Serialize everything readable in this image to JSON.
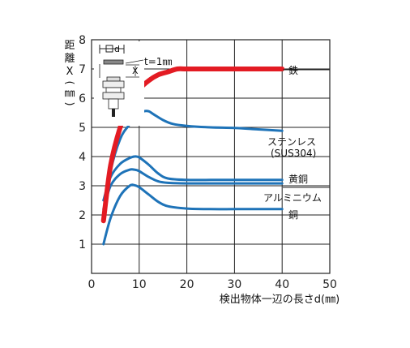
{
  "chart_data": {
    "type": "line",
    "title": "",
    "xlabel": "検出物体一辺の長さd(㎜)",
    "ylabel_chars": [
      "距",
      "離",
      "X",
      "(",
      "㎜",
      ")"
    ],
    "xlim": [
      0,
      50
    ],
    "ylim": [
      0,
      8
    ],
    "xticks": [
      0,
      10,
      20,
      30,
      40,
      50
    ],
    "yticks": [
      1,
      2,
      3,
      4,
      5,
      6,
      7,
      8
    ],
    "grid": true,
    "inset": {
      "t_label": "t=1㎜",
      "d_label": "d",
      "x_label": "X"
    },
    "series": [
      {
        "name": "鉄",
        "color": "#e31b23",
        "x": [
          2.5,
          4,
          6,
          8,
          10,
          12,
          14,
          16,
          18,
          20,
          25,
          30,
          35,
          40
        ],
        "y": [
          1.8,
          3.7,
          5.0,
          5.8,
          6.3,
          6.6,
          6.8,
          6.9,
          7.0,
          7.0,
          7.0,
          7.0,
          7.0,
          7.0
        ]
      },
      {
        "name": "ステンレス",
        "name2": "(SUS304)",
        "color": "#1e73b8",
        "x": [
          2.5,
          4,
          6,
          8,
          10,
          11,
          12,
          13,
          15,
          17,
          20,
          25,
          30,
          35,
          40
        ],
        "y": [
          1.9,
          3.5,
          4.6,
          5.1,
          5.45,
          5.55,
          5.55,
          5.45,
          5.25,
          5.12,
          5.05,
          5.0,
          4.98,
          4.93,
          4.88
        ]
      },
      {
        "name": "黄銅",
        "color": "#1e73b8",
        "x": [
          2.5,
          4,
          6,
          8,
          9,
          10,
          12,
          14,
          16,
          20,
          25,
          30,
          35,
          40
        ],
        "y": [
          2.5,
          3.3,
          3.75,
          3.95,
          4.0,
          3.97,
          3.72,
          3.42,
          3.25,
          3.2,
          3.2,
          3.2,
          3.2,
          3.2
        ]
      },
      {
        "name": "アルミニウム",
        "color": "#1e73b8",
        "x": [
          2.5,
          4,
          6,
          8,
          9,
          10,
          12,
          14,
          16,
          20,
          25,
          30,
          35,
          40
        ],
        "y": [
          2.2,
          3.0,
          3.4,
          3.55,
          3.55,
          3.5,
          3.3,
          3.15,
          3.1,
          3.08,
          3.08,
          3.08,
          3.08,
          3.08
        ]
      },
      {
        "name": "銅",
        "color": "#1e73b8",
        "x": [
          2.5,
          4,
          6,
          8,
          9,
          10,
          12,
          14,
          16,
          20,
          25,
          30,
          35,
          40
        ],
        "y": [
          1.0,
          1.9,
          2.65,
          3.0,
          3.02,
          2.95,
          2.7,
          2.45,
          2.3,
          2.22,
          2.2,
          2.2,
          2.2,
          2.2
        ]
      }
    ]
  }
}
